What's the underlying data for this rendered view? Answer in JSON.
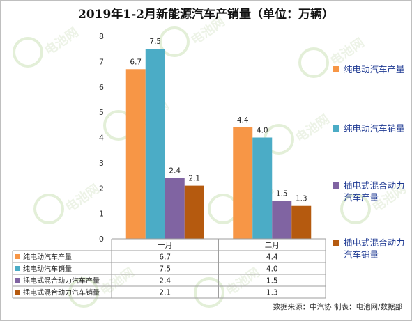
{
  "title": "2019年1-2月新能源汽车产销量（单位：万辆）",
  "source_note": "数据来源：中汽协  制表：电池网/数据部",
  "watermark": "电池网",
  "chart_data": {
    "type": "bar",
    "categories": [
      "一月",
      "二月"
    ],
    "ylim": [
      0,
      8
    ],
    "yticks": [
      0,
      1,
      2,
      3,
      4,
      5,
      6,
      7,
      8
    ],
    "grid": false,
    "legend_position": "right",
    "series": [
      {
        "name": "纯电动汽车产量",
        "color": "#f79646",
        "values": [
          6.7,
          4.4
        ]
      },
      {
        "name": "纯电动汽车销量",
        "color": "#4bacc6",
        "values": [
          7.5,
          4.0
        ]
      },
      {
        "name": "插电式混合动力汽车产量",
        "color": "#8064a2",
        "values": [
          2.4,
          1.5
        ]
      },
      {
        "name": "插电式混合动力汽车销量",
        "color": "#b55a0f",
        "values": [
          2.1,
          1.3
        ]
      }
    ],
    "table": {
      "header": [
        "",
        "一月",
        "二月"
      ],
      "rows": [
        [
          "纯电动汽车产量",
          "6.7",
          "4.4"
        ],
        [
          "纯电动汽车销量",
          "7.5",
          "4.0"
        ],
        [
          "插电式混合动力汽车产量",
          "2.4",
          "1.5"
        ],
        [
          "插电式混合动力汽车销量",
          "2.1",
          "1.3"
        ]
      ]
    }
  }
}
